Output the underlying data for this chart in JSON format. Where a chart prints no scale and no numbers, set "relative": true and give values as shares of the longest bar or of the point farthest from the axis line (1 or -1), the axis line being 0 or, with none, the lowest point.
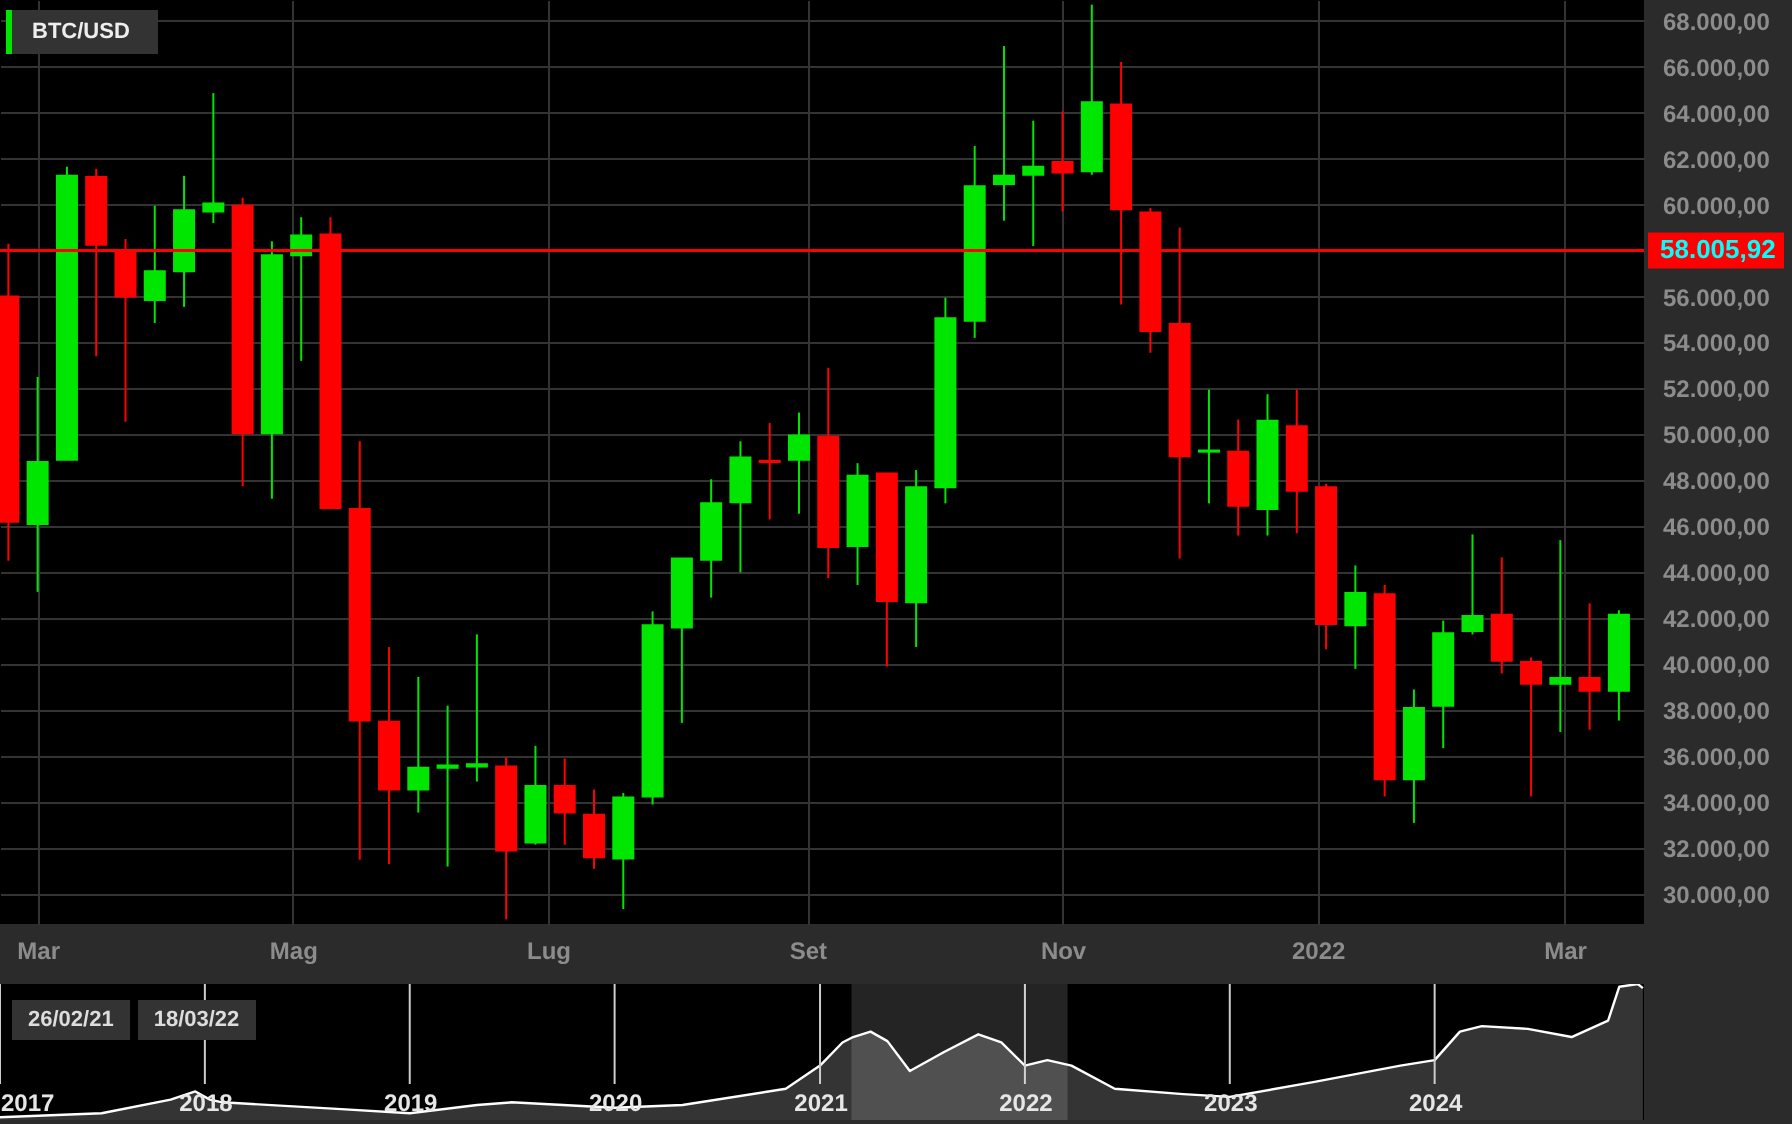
{
  "chart_data": [
    {
      "type": "candlestick",
      "title": "BTC/USD",
      "x": [
        "2021-02-22",
        "2021-03-01",
        "2021-03-08",
        "2021-03-15",
        "2021-03-22",
        "2021-03-29",
        "2021-04-05",
        "2021-04-12",
        "2021-04-19",
        "2021-04-26",
        "2021-05-03",
        "2021-05-10",
        "2021-05-17",
        "2021-05-24",
        "2021-05-31",
        "2021-06-07",
        "2021-06-14",
        "2021-06-21",
        "2021-06-28",
        "2021-07-05",
        "2021-07-12",
        "2021-07-19",
        "2021-07-26",
        "2021-08-02",
        "2021-08-09",
        "2021-08-16",
        "2021-08-23",
        "2021-08-30",
        "2021-09-06",
        "2021-09-13",
        "2021-09-20",
        "2021-09-27",
        "2021-10-04",
        "2021-10-11",
        "2021-10-18",
        "2021-10-25",
        "2021-11-01",
        "2021-11-08",
        "2021-11-15",
        "2021-11-22",
        "2021-11-29",
        "2021-12-06",
        "2021-12-13",
        "2021-12-20",
        "2021-12-27",
        "2022-01-03",
        "2022-01-10",
        "2022-01-17",
        "2022-01-24",
        "2022-01-31",
        "2022-02-07",
        "2022-02-14",
        "2022-02-21",
        "2022-02-28",
        "2022-03-07",
        "2022-03-14"
      ],
      "ohlc": [
        [
          56000,
          58300,
          44500,
          46200
        ],
        [
          46100,
          52500,
          43150,
          48800
        ],
        [
          48900,
          61650,
          48900,
          61250
        ],
        [
          61200,
          61550,
          53400,
          58250
        ],
        [
          58000,
          58500,
          50550,
          56000
        ],
        [
          55850,
          59950,
          54850,
          57100
        ],
        [
          57100,
          61250,
          55550,
          59750
        ],
        [
          59700,
          64850,
          59200,
          60050
        ],
        [
          59950,
          60300,
          47750,
          50050
        ],
        [
          50050,
          58400,
          47200,
          57800
        ],
        [
          57800,
          59450,
          53200,
          58650
        ],
        [
          58700,
          59450,
          46800,
          46800
        ],
        [
          46750,
          49700,
          31500,
          37550
        ],
        [
          37500,
          40750,
          31300,
          34550
        ],
        [
          34550,
          39450,
          33550,
          35500
        ],
        [
          35500,
          38200,
          31200,
          35600
        ],
        [
          35550,
          41300,
          34900,
          35650
        ],
        [
          35550,
          35950,
          28900,
          31900
        ],
        [
          32250,
          36450,
          32150,
          34700
        ],
        [
          34700,
          35900,
          32150,
          33550
        ],
        [
          33450,
          34550,
          31100,
          31600
        ],
        [
          31550,
          34400,
          29350,
          34200
        ],
        [
          34250,
          42300,
          33900,
          41700
        ],
        [
          41600,
          44600,
          37450,
          44600
        ],
        [
          44550,
          48050,
          42900,
          47000
        ],
        [
          47050,
          49700,
          44000,
          49000
        ],
        [
          48850,
          50500,
          46300,
          48800
        ],
        [
          48900,
          50950,
          46550,
          49950
        ],
        [
          49900,
          52900,
          43750,
          45100
        ],
        [
          45150,
          48750,
          43450,
          48200
        ],
        [
          48300,
          48300,
          39900,
          42750
        ],
        [
          42700,
          48450,
          40750,
          47700
        ],
        [
          47700,
          55950,
          47000,
          55050
        ],
        [
          54950,
          62550,
          54200,
          60800
        ],
        [
          60900,
          66900,
          59300,
          61250
        ],
        [
          61300,
          63650,
          58200,
          61650
        ],
        [
          61850,
          64050,
          59700,
          61400
        ],
        [
          61450,
          68700,
          61300,
          64450
        ],
        [
          64350,
          66200,
          55650,
          59800
        ],
        [
          59650,
          59850,
          53550,
          54500
        ],
        [
          54800,
          59000,
          44600,
          49050
        ],
        [
          49250,
          51950,
          47000,
          49300
        ],
        [
          49250,
          50650,
          45600,
          46900
        ],
        [
          46750,
          51750,
          45600,
          50600
        ],
        [
          50350,
          51950,
          45700,
          47550
        ],
        [
          47700,
          47850,
          40650,
          41750
        ],
        [
          41700,
          44300,
          39800,
          43100
        ],
        [
          43050,
          43450,
          34250,
          35000
        ],
        [
          35000,
          38900,
          33100,
          38100
        ],
        [
          38200,
          41900,
          36350,
          41350
        ],
        [
          41450,
          45650,
          41300,
          42100
        ],
        [
          42150,
          44650,
          39600,
          40150
        ],
        [
          40100,
          40300,
          34250,
          39150
        ],
        [
          39150,
          45400,
          37050,
          39400
        ],
        [
          39400,
          42650,
          37150,
          38850
        ],
        [
          38850,
          42350,
          37550,
          42150
        ]
      ],
      "xlim": [
        "2021-02-20",
        "2022-03-20"
      ],
      "xticks": [
        {
          "value": "2021-03-01",
          "label": "Mar"
        },
        {
          "value": "2021-05-01",
          "label": "Mag"
        },
        {
          "value": "2021-07-01",
          "label": "Lug"
        },
        {
          "value": "2021-09-01",
          "label": "Set"
        },
        {
          "value": "2021-11-01",
          "label": "Nov"
        },
        {
          "value": "2022-01-01",
          "label": "2022"
        },
        {
          "value": "2022-03-01",
          "label": "Mar"
        }
      ],
      "ylim": [
        28700,
        68900
      ],
      "yticks": [
        {
          "value": 30000,
          "label": "30.000,00"
        },
        {
          "value": 32000,
          "label": "32.000,00"
        },
        {
          "value": 34000,
          "label": "34.000,00"
        },
        {
          "value": 36000,
          "label": "36.000,00"
        },
        {
          "value": 38000,
          "label": "38.000,00"
        },
        {
          "value": 40000,
          "label": "40.000,00"
        },
        {
          "value": 42000,
          "label": "42.000,00"
        },
        {
          "value": 44000,
          "label": "44.000,00"
        },
        {
          "value": 46000,
          "label": "46.000,00"
        },
        {
          "value": 48000,
          "label": "48.000,00"
        },
        {
          "value": 50000,
          "label": "50.000,00"
        },
        {
          "value": 52000,
          "label": "52.000,00"
        },
        {
          "value": 54000,
          "label": "54.000,00"
        },
        {
          "value": 56000,
          "label": "56.000,00"
        },
        {
          "value": 58000,
          "label": null
        },
        {
          "value": 60000,
          "label": "60.000,00"
        },
        {
          "value": 62000,
          "label": "62.000,00"
        },
        {
          "value": 64000,
          "label": "64.000,00"
        },
        {
          "value": 66000,
          "label": "66.000,00"
        },
        {
          "value": 68000,
          "label": "68.000,00"
        }
      ],
      "grid": true,
      "ref_lines": [
        {
          "axis": "y",
          "value": 58005.92,
          "label": "58.005,92",
          "color": "#ff0000"
        }
      ]
    },
    {
      "type": "area",
      "relative": true,
      "color": "#4a4a4a",
      "x": [
        "2017-01-01",
        "2017-07-01",
        "2017-11-01",
        "2017-12-15",
        "2018-01-10",
        "2018-02-01",
        "2018-09-01",
        "2019-01-01",
        "2019-05-01",
        "2019-07-01",
        "2020-01-01",
        "2020-05-01",
        "2020-11-01",
        "2021-01-01",
        "2021-02-10",
        "2021-03-01",
        "2021-04-01",
        "2021-05-01",
        "2021-06-10",
        "2021-08-10",
        "2021-10-10",
        "2021-11-20",
        "2022-01-01",
        "2022-02-10",
        "2022-03-25",
        "2022-06-10",
        "2022-10-10",
        "2023-01-01",
        "2023-06-01",
        "2023-11-01",
        "2024-01-01",
        "2024-02-15",
        "2024-03-25",
        "2024-06-15",
        "2024-09-01",
        "2024-11-05",
        "2024-11-25",
        "2024-12-28",
        "2025-01-06"
      ],
      "values": [
        0.02,
        0.05,
        0.15,
        0.21,
        0.15,
        0.13,
        0.08,
        0.05,
        0.11,
        0.13,
        0.09,
        0.11,
        0.23,
        0.4,
        0.57,
        0.61,
        0.65,
        0.58,
        0.36,
        0.5,
        0.63,
        0.57,
        0.4,
        0.44,
        0.4,
        0.23,
        0.19,
        0.17,
        0.28,
        0.4,
        0.44,
        0.65,
        0.69,
        0.67,
        0.61,
        0.73,
        0.98,
        1,
        0.97
      ],
      "xlim": [
        "2017-01-01",
        "2025-01-08"
      ],
      "xticks": [
        {
          "value": "2017-01-01",
          "label": "2017"
        },
        {
          "value": "2018-01-01",
          "label": "2018"
        },
        {
          "value": "2019-01-01",
          "label": "2019"
        },
        {
          "value": "2020-01-01",
          "label": "2020"
        },
        {
          "value": "2021-01-01",
          "label": "2021"
        },
        {
          "value": "2022-01-01",
          "label": "2022"
        },
        {
          "value": "2023-01-01",
          "label": "2023"
        },
        {
          "value": "2024-01-01",
          "label": "2024"
        }
      ],
      "grid": "x",
      "tick_labels": "x",
      "bands": [
        {
          "axis": "x",
          "from": "2021-02-26",
          "to": "2022-03-18",
          "color": "#ffffff"
        }
      ],
      "annotations": [
        "26/02/21",
        "18/03/22"
      ]
    }
  ]
}
